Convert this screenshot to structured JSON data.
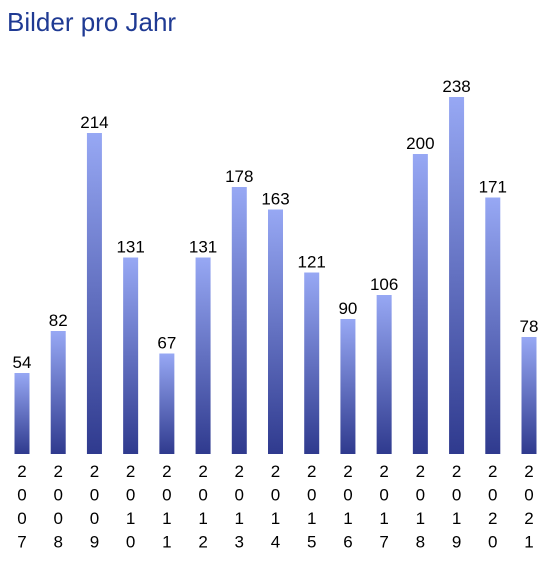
{
  "chart_data": {
    "type": "bar",
    "title": "Bilder pro Jahr",
    "xlabel": "",
    "ylabel": "",
    "categories": [
      "2007",
      "2008",
      "2009",
      "2010",
      "2011",
      "2012",
      "2013",
      "2014",
      "2015",
      "2016",
      "2017",
      "2018",
      "2019",
      "2020",
      "2021"
    ],
    "values": [
      54,
      82,
      214,
      131,
      67,
      131,
      178,
      163,
      121,
      90,
      106,
      200,
      238,
      171,
      78
    ],
    "ylim": [
      0,
      238
    ],
    "grid": false,
    "legend": "none",
    "colors": {
      "title": "#1f3a93",
      "bar_top": "#97a8f4",
      "bar_bottom": "#2f3a8e",
      "text": "#000000"
    }
  }
}
